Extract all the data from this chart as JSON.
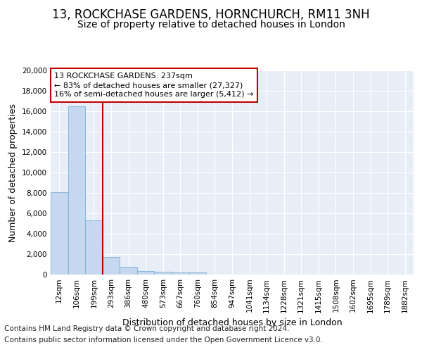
{
  "title_line1": "13, ROCKCHASE GARDENS, HORNCHURCH, RM11 3NH",
  "title_line2": "Size of property relative to detached houses in London",
  "xlabel": "Distribution of detached houses by size in London",
  "ylabel": "Number of detached properties",
  "footnote1": "Contains HM Land Registry data © Crown copyright and database right 2024.",
  "footnote2": "Contains public sector information licensed under the Open Government Licence v3.0.",
  "bar_labels": [
    "12sqm",
    "106sqm",
    "199sqm",
    "293sqm",
    "386sqm",
    "480sqm",
    "573sqm",
    "667sqm",
    "760sqm",
    "854sqm",
    "947sqm",
    "1041sqm",
    "1134sqm",
    "1228sqm",
    "1321sqm",
    "1415sqm",
    "1508sqm",
    "1602sqm",
    "1695sqm",
    "1789sqm",
    "1882sqm"
  ],
  "bar_heights": [
    8100,
    16500,
    5300,
    1750,
    750,
    330,
    270,
    200,
    180,
    0,
    0,
    0,
    0,
    0,
    0,
    0,
    0,
    0,
    0,
    0,
    0
  ],
  "bar_color": "#c5d8f0",
  "bar_edge_color": "#7bafd4",
  "vline_color": "#c00000",
  "annotation_text": "13 ROCKCHASE GARDENS: 237sqm\n← 83% of detached houses are smaller (27,327)\n16% of semi-detached houses are larger (5,412) →",
  "annotation_box_facecolor": "#ffffff",
  "annotation_border_color": "#c00000",
  "ylim": [
    0,
    20000
  ],
  "yticks": [
    0,
    2000,
    4000,
    6000,
    8000,
    10000,
    12000,
    14000,
    16000,
    18000,
    20000
  ],
  "background_color": "#e8eef8",
  "grid_color": "#ffffff",
  "title_fontsize": 12,
  "subtitle_fontsize": 10,
  "axis_label_fontsize": 9,
  "tick_fontsize": 7.5,
  "annotation_fontsize": 8,
  "footnote_fontsize": 7.5
}
